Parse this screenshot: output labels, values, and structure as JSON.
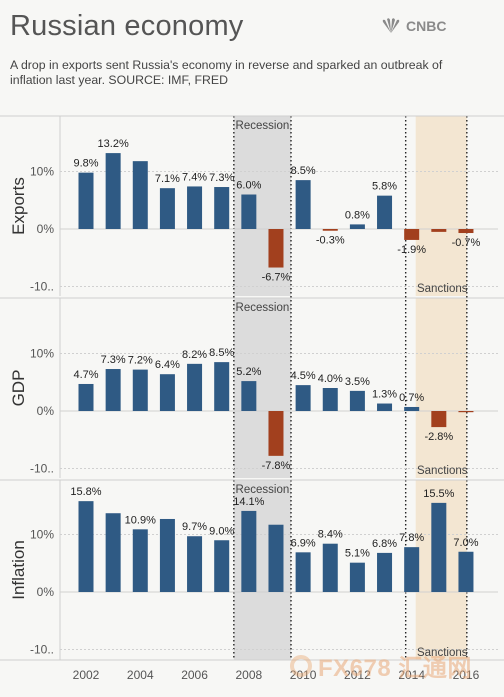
{
  "header": {
    "title": "Russian economy",
    "brand": "CNBC",
    "subtitle": "A drop in exports sent Russia's economy in reverse and sparked an outbreak of inflation last year. SOURCE: IMF, FRED"
  },
  "watermark": {
    "text": "FX678 汇通网"
  },
  "colors": {
    "positive": "#2f5a84",
    "negative": "#a2401e",
    "recession_band": "#dcdcdc",
    "sanctions_band": "#f3e6d2",
    "background": "#f7f7f5",
    "gridline": "#d0d0d0"
  },
  "chart_data": {
    "type": "bar",
    "layout_note": "three stacked panels sharing x axis",
    "x": [
      2002,
      2003,
      2004,
      2005,
      2006,
      2007,
      2008,
      2009,
      2010,
      2011,
      2012,
      2013,
      2014,
      2015,
      2016
    ],
    "x_tick_labels": [
      "2002",
      "2004",
      "2006",
      "2008",
      "2010",
      "2012",
      "2014",
      "2016"
    ],
    "ylim": [
      -11,
      18
    ],
    "y_tick_labels": [
      "10%",
      "0%",
      "-10.."
    ],
    "annotations": {
      "recession": {
        "label": "Recession",
        "from": 2008,
        "to": 2009
      },
      "sanctions": {
        "label": "Sanctions",
        "from": 2014,
        "to": 2015
      }
    },
    "panels": [
      {
        "ylabel": "Exports",
        "values": [
          9.8,
          13.2,
          11.8,
          7.1,
          7.4,
          7.3,
          6.0,
          -6.7,
          8.5,
          -0.3,
          0.8,
          5.8,
          -1.9,
          -0.5,
          -0.7
        ],
        "labels": [
          "9.8%",
          "13.2%",
          "",
          "7.1%",
          "7.4%",
          "7.3%",
          "6.0%",
          "-6.7%",
          "8.5%",
          "-0.3%",
          "0.8%",
          "5.8%",
          "-1.9%",
          "",
          "-0.7%"
        ]
      },
      {
        "ylabel": "GDP",
        "values": [
          4.7,
          7.3,
          7.2,
          6.4,
          8.2,
          8.5,
          5.2,
          -7.8,
          4.5,
          4.0,
          3.5,
          1.3,
          0.7,
          -2.8,
          -0.2
        ],
        "labels": [
          "4.7%",
          "7.3%",
          "7.2%",
          "6.4%",
          "8.2%",
          "8.5%",
          "5.2%",
          "-7.8%",
          "4.5%",
          "4.0%",
          "3.5%",
          "1.3%",
          "0.7%",
          "-2.8%",
          ""
        ]
      },
      {
        "ylabel": "Inflation",
        "values": [
          15.8,
          13.7,
          10.9,
          12.7,
          9.7,
          9.0,
          14.1,
          11.7,
          6.9,
          8.4,
          5.1,
          6.8,
          7.8,
          15.5,
          7.0
        ],
        "labels": [
          "15.8%",
          "",
          "10.9%",
          "",
          "9.7%",
          "9.0%",
          "14.1%",
          "",
          "6.9%",
          "8.4%",
          "5.1%",
          "6.8%",
          "7.8%",
          "15.5%",
          "7.0%"
        ]
      }
    ]
  }
}
